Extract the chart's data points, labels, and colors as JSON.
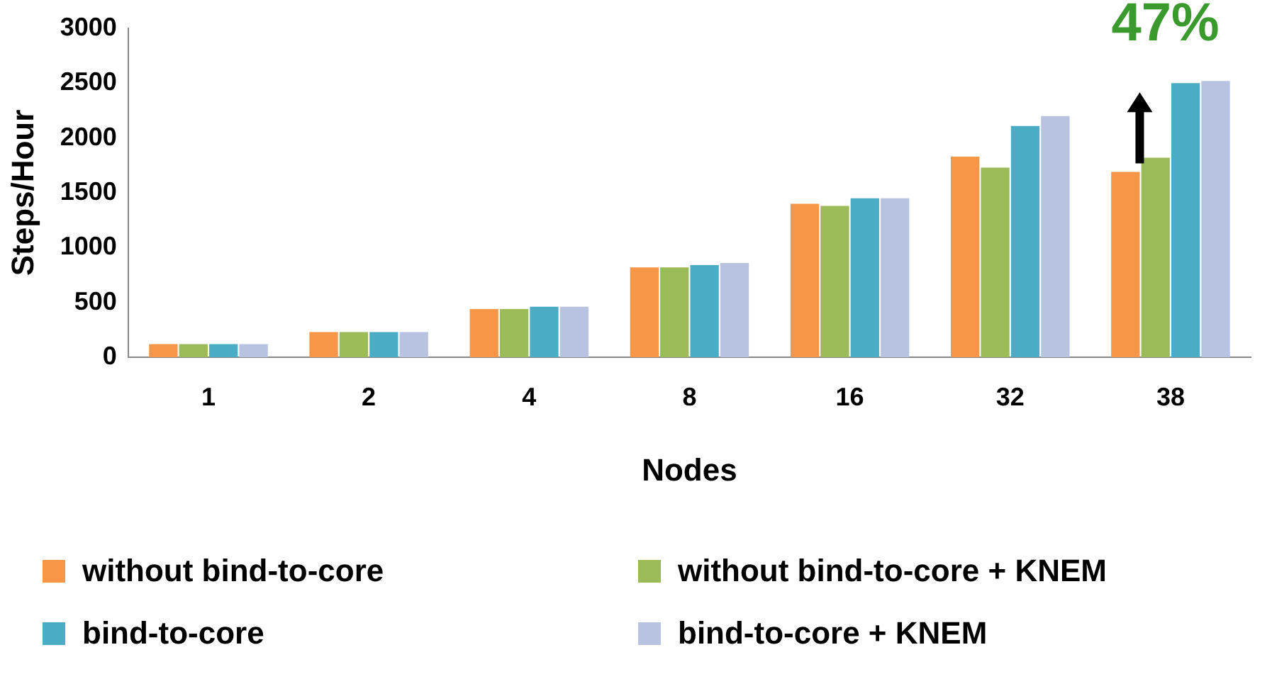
{
  "chart_data": {
    "type": "bar",
    "xlabel": "Nodes",
    "ylabel": "Steps/Hour",
    "categories": [
      "1",
      "2",
      "4",
      "8",
      "16",
      "32",
      "38"
    ],
    "series": [
      {
        "name": "without bind-to-core",
        "color": "#f79646",
        "values": [
          120,
          230,
          440,
          820,
          1400,
          1830,
          1690
        ]
      },
      {
        "name": "without bind-to-core + KNEM",
        "color": "#9bbb59",
        "values": [
          120,
          230,
          440,
          820,
          1380,
          1730,
          1820
        ]
      },
      {
        "name": "bind-to-core",
        "color": "#4bacc6",
        "values": [
          120,
          230,
          460,
          840,
          1450,
          2110,
          2500
        ]
      },
      {
        "name": "bind-to-core + KNEM",
        "color": "#b7c3e0",
        "values": [
          120,
          230,
          460,
          860,
          1450,
          2200,
          2520
        ]
      }
    ],
    "ylim": [
      0,
      3000
    ],
    "yticks": [
      0,
      500,
      1000,
      1500,
      2000,
      2500,
      3000
    ],
    "grid": false,
    "legend": "bottom",
    "annotations": [
      "47%"
    ]
  }
}
